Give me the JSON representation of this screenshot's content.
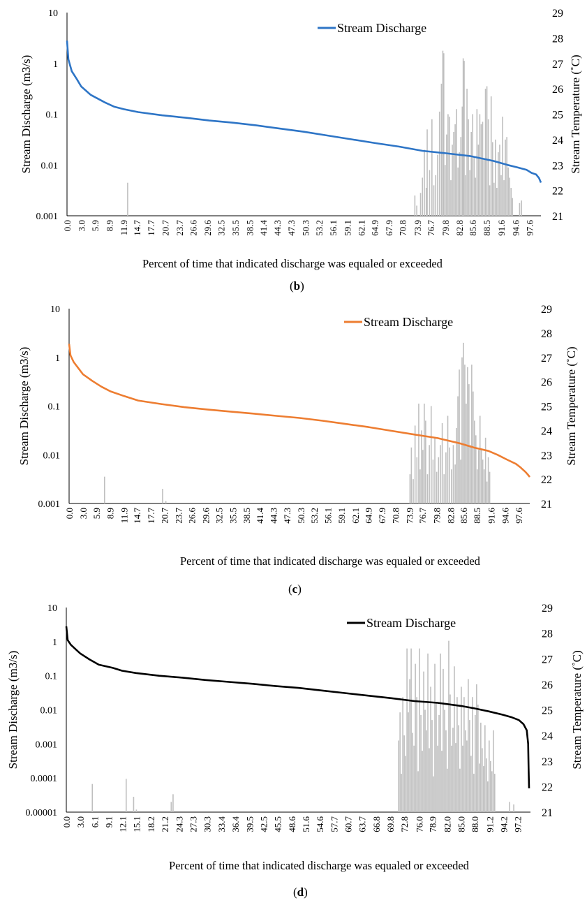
{
  "charts": [
    {
      "panel_label": "b",
      "xlabel": "Percent of time that indicated discharge was equaled or exceeded",
      "ylabel_left": "Stream Discharge (m3/s)",
      "ylabel_right": "Stream Temperature (˚C)",
      "legend": "Stream Discharge",
      "line_color": "#2E75C6",
      "left_ticks": [
        "10",
        "1",
        "0.1",
        "0.01",
        "0.001"
      ],
      "right_ticks": [
        "29",
        "28",
        "27",
        "26",
        "25",
        "24",
        "23",
        "22",
        "21"
      ],
      "x_ticks": [
        "0.0",
        "3.0",
        "5.9",
        "8.9",
        "11.9",
        "14.7",
        "17.7",
        "20.7",
        "23.7",
        "26.6",
        "29.6",
        "32.5",
        "35.5",
        "38.5",
        "41.4",
        "44.3",
        "47.3",
        "50.3",
        "53.2",
        "56.1",
        "59.1",
        "62.1",
        "64.9",
        "67.9",
        "70.8",
        "73.9",
        "76.7",
        "79.8",
        "82.8",
        "85.6",
        "88.5",
        "91.6",
        "94.6",
        "97.6"
      ]
    },
    {
      "panel_label": "c",
      "xlabel": "Percent of time that indicated discharge was equaled or exceeded",
      "ylabel_left": "Stream Discharge (m3/s)",
      "ylabel_right": "Stream Temperature (˚C)",
      "legend": "Stream Discharge",
      "line_color": "#ED7D31",
      "left_ticks": [
        "10",
        "1",
        "0.1",
        "0.01",
        "0.001"
      ],
      "right_ticks": [
        "29",
        "28",
        "27",
        "26",
        "25",
        "24",
        "23",
        "22",
        "21"
      ],
      "x_ticks": [
        "0.0",
        "3.0",
        "5.9",
        "8.9",
        "11.9",
        "14.7",
        "17.7",
        "20.7",
        "23.7",
        "26.6",
        "29.6",
        "32.5",
        "35.5",
        "38.5",
        "41.4",
        "44.3",
        "47.3",
        "50.3",
        "53.2",
        "56.1",
        "59.1",
        "62.1",
        "64.9",
        "67.9",
        "70.8",
        "73.9",
        "76.7",
        "79.8",
        "82.8",
        "85.6",
        "88.5",
        "91.6",
        "94.6",
        "97.6"
      ]
    },
    {
      "panel_label": "d",
      "xlabel": "Percent of time that indicated discharge was equaled or exceeded",
      "ylabel_left": "Stream Discharge (m3/s)",
      "ylabel_right": "Stream Temperature (˚C)",
      "legend": "Stream Discharge",
      "line_color": "#000000",
      "left_ticks": [
        "10",
        "1",
        "0.1",
        "0.01",
        "0.001",
        "0.0001",
        "0.00001"
      ],
      "right_ticks": [
        "29",
        "28",
        "27",
        "26",
        "25",
        "24",
        "23",
        "22",
        "21"
      ],
      "x_ticks": [
        "0.0",
        "3.0",
        "6.1",
        "9.1",
        "12.1",
        "15.1",
        "18.2",
        "21.2",
        "24.3",
        "27.3",
        "30.3",
        "33.4",
        "36.4",
        "39.5",
        "42.5",
        "45.5",
        "48.6",
        "51.6",
        "54.6",
        "57.7",
        "60.7",
        "63.7",
        "66.8",
        "69.8",
        "72.8",
        "76.0",
        "78.9",
        "82.0",
        "85.0",
        "88.0",
        "91.2",
        "94.2",
        "97.2"
      ]
    }
  ],
  "chart_data": [
    {
      "type": "line",
      "title": "",
      "xlabel": "Percent of time that indicated discharge was equaled or exceeded",
      "ylabel": "Stream Discharge (m3/s)",
      "y2label": "Stream Temperature (˚C)",
      "yscale": "log",
      "ylim": [
        0.001,
        10
      ],
      "y2lim": [
        21,
        29
      ],
      "xlim": [
        0,
        100
      ],
      "series": [
        {
          "name": "Stream Discharge",
          "type": "line",
          "axis": "left",
          "x": [
            0,
            0.3,
            1,
            2,
            3,
            5,
            8,
            10,
            12,
            15,
            20,
            25,
            30,
            35,
            40,
            45,
            50,
            55,
            60,
            65,
            70,
            75,
            80,
            85,
            90,
            93,
            95,
            97,
            98,
            99,
            99.6,
            100
          ],
          "y": [
            2.8,
            1.2,
            0.7,
            0.5,
            0.35,
            0.24,
            0.17,
            0.14,
            0.125,
            0.11,
            0.095,
            0.085,
            0.075,
            0.068,
            0.06,
            0.052,
            0.045,
            0.038,
            0.032,
            0.027,
            0.023,
            0.019,
            0.017,
            0.015,
            0.012,
            0.01,
            0.009,
            0.008,
            0.007,
            0.0065,
            0.0055,
            0.0045
          ]
        },
        {
          "type": "bar",
          "axis": "right",
          "x": [
            12.8,
            73.4,
            73.8,
            74.6,
            75.0,
            75.4,
            75.8,
            76.0,
            76.5,
            77.0,
            77.4,
            77.8,
            78.2,
            78.6,
            79.0,
            79.3,
            79.5,
            79.8,
            80.1,
            80.4,
            80.7,
            81.0,
            81.3,
            81.6,
            81.9,
            82.2,
            82.5,
            82.8,
            83.1,
            83.4,
            83.6,
            83.8,
            84.1,
            84.4,
            84.7,
            85.0,
            85.3,
            85.6,
            85.9,
            86.2,
            86.5,
            86.8,
            87.1,
            87.4,
            87.7,
            88.0,
            88.3,
            88.6,
            88.9,
            89.2,
            89.5,
            89.8,
            90.1,
            90.4,
            90.7,
            91.0,
            91.3,
            91.6,
            91.9,
            92.2,
            92.5,
            92.8,
            93.1,
            93.4,
            93.7,
            94.0,
            95.5,
            95.9
          ],
          "y": [
            22.3,
            21.8,
            21.4,
            21.9,
            22.5,
            23.6,
            22.1,
            24.4,
            22.8,
            24.8,
            22.2,
            22.6,
            23.4,
            25.1,
            26.2,
            27.5,
            27.4,
            23.0,
            24.2,
            25.0,
            24.9,
            22.4,
            23.8,
            24.3,
            24.6,
            25.2,
            22.9,
            23.5,
            24.1,
            25.3,
            27.2,
            27.1,
            22.6,
            26.0,
            24.8,
            22.8,
            24.3,
            25.0,
            23.3,
            22.5,
            25.2,
            23.8,
            25.0,
            24.6,
            24.7,
            23.2,
            26.0,
            26.1,
            24.8,
            22.2,
            25.7,
            23.9,
            22.3,
            24.0,
            22.1,
            23.5,
            23.8,
            22.6,
            24.9,
            22.4,
            24.0,
            24.1,
            22.9,
            22.5,
            22.1,
            21.7,
            21.5,
            21.6
          ]
        }
      ]
    },
    {
      "type": "line",
      "title": "",
      "xlabel": "Percent of time that indicated discharge was equaled or exceeded",
      "ylabel": "Stream Discharge (m3/s)",
      "y2label": "Stream Temperature (˚C)",
      "yscale": "log",
      "ylim": [
        0.001,
        10
      ],
      "y2lim": [
        21,
        29
      ],
      "xlim": [
        0,
        100
      ],
      "series": [
        {
          "name": "Stream Discharge",
          "type": "line",
          "axis": "left",
          "x": [
            0,
            0.3,
            1,
            2,
            3,
            5,
            7,
            9,
            12,
            15,
            20,
            25,
            30,
            35,
            40,
            45,
            50,
            55,
            60,
            65,
            70,
            75,
            80,
            85,
            88,
            91,
            93,
            95,
            97,
            98,
            99,
            99.5,
            100
          ],
          "y": [
            1.9,
            1.1,
            0.8,
            0.6,
            0.45,
            0.33,
            0.25,
            0.2,
            0.16,
            0.13,
            0.11,
            0.095,
            0.085,
            0.077,
            0.07,
            0.063,
            0.057,
            0.05,
            0.043,
            0.037,
            0.031,
            0.026,
            0.022,
            0.017,
            0.014,
            0.012,
            0.01,
            0.008,
            0.0065,
            0.0055,
            0.0045,
            0.004,
            0.0035
          ]
        },
        {
          "type": "bar",
          "axis": "right",
          "x": [
            7.7,
            20.3,
            21.0,
            74.0,
            74.3,
            74.7,
            75.1,
            75.5,
            75.9,
            76.2,
            76.5,
            76.8,
            77.1,
            77.4,
            77.8,
            78.2,
            78.6,
            79.0,
            79.4,
            79.8,
            80.2,
            80.6,
            81.0,
            81.4,
            81.8,
            82.2,
            82.6,
            83.0,
            83.4,
            83.8,
            84.1,
            84.4,
            84.7,
            85.0,
            85.3,
            85.6,
            85.9,
            86.2,
            86.5,
            86.8,
            87.1,
            87.4,
            87.7,
            88.0,
            88.3,
            88.6,
            88.9,
            89.2,
            89.5,
            89.8,
            90.1,
            90.4,
            90.7,
            91.0,
            91.3
          ],
          "y": [
            22.1,
            21.6,
            21.1,
            22.2,
            23.3,
            22.0,
            24.2,
            22.9,
            25.1,
            22.4,
            24.0,
            23.2,
            25.1,
            24.4,
            22.2,
            23.4,
            25.0,
            22.8,
            23.7,
            22.3,
            22.9,
            23.4,
            24.3,
            22.2,
            23.1,
            24.6,
            23.3,
            22.4,
            23.4,
            22.6,
            24.1,
            25.4,
            26.5,
            22.8,
            27.0,
            27.6,
            26.7,
            25.1,
            26.6,
            25.9,
            23.4,
            26.7,
            25.6,
            24.4,
            23.8,
            22.4,
            23.2,
            24.6,
            23.2,
            22.8,
            22.4,
            23.7,
            21.9,
            22.9,
            22.3
          ]
        }
      ]
    },
    {
      "type": "line",
      "title": "",
      "xlabel": "Percent of time that indicated discharge was equaled or exceeded",
      "ylabel": "Stream Discharge (m3/s)",
      "y2label": "Stream Temperature (˚C)",
      "yscale": "log",
      "ylim": [
        1e-05,
        10
      ],
      "y2lim": [
        21,
        29
      ],
      "xlim": [
        0,
        100
      ],
      "series": [
        {
          "name": "Stream Discharge",
          "type": "line",
          "axis": "left",
          "x": [
            0,
            0.3,
            1,
            2,
            3,
            5,
            7,
            10,
            12,
            15,
            20,
            25,
            30,
            35,
            40,
            45,
            50,
            55,
            60,
            65,
            70,
            75,
            80,
            85,
            88,
            91,
            94,
            96,
            97.5,
            98.5,
            99.2,
            99.5,
            99.6,
            99.7
          ],
          "y": [
            2.8,
            1.1,
            0.8,
            0.6,
            0.45,
            0.3,
            0.21,
            0.17,
            0.14,
            0.12,
            0.1,
            0.088,
            0.075,
            0.066,
            0.058,
            0.05,
            0.044,
            0.037,
            0.031,
            0.026,
            0.022,
            0.018,
            0.016,
            0.013,
            0.011,
            0.009,
            0.0072,
            0.006,
            0.005,
            0.0038,
            0.0025,
            0.001,
            0.0002,
            5e-05
          ]
        },
        {
          "type": "bar",
          "axis": "right",
          "x": [
            5.6,
            12.9,
            14.5,
            15.1,
            22.6,
            23.0,
            71.6,
            71.9,
            72.2,
            72.5,
            72.8,
            73.1,
            73.4,
            73.7,
            74.0,
            74.3,
            74.6,
            74.9,
            75.2,
            75.5,
            75.8,
            76.1,
            76.4,
            76.7,
            77.0,
            77.3,
            77.6,
            77.9,
            78.2,
            78.5,
            78.8,
            79.1,
            79.4,
            79.7,
            80.0,
            80.3,
            80.6,
            80.9,
            81.2,
            81.5,
            81.8,
            82.1,
            82.4,
            82.7,
            83.0,
            83.3,
            83.6,
            83.9,
            84.2,
            84.5,
            84.8,
            85.1,
            85.4,
            85.7,
            86.0,
            86.3,
            86.6,
            86.9,
            87.2,
            87.5,
            87.8,
            88.1,
            88.4,
            88.7,
            89.0,
            89.3,
            89.6,
            89.9,
            90.2,
            90.5,
            90.8,
            91.1,
            91.4,
            91.7,
            92.0,
            92.3,
            95.5,
            96.4
          ],
          "y": [
            22.1,
            22.3,
            21.6,
            21.1,
            21.4,
            21.7,
            23.8,
            24.9,
            22.5,
            25.5,
            24.0,
            23.2,
            27.4,
            24.9,
            26.2,
            27.4,
            24.1,
            23.6,
            26.8,
            25.5,
            22.6,
            27.4,
            24.8,
            23.4,
            26.5,
            25.0,
            24.2,
            27.2,
            23.5,
            25.9,
            24.6,
            22.4,
            26.8,
            25.3,
            23.6,
            24.8,
            27.2,
            23.4,
            26.6,
            25.0,
            24.2,
            22.7,
            27.7,
            25.6,
            23.6,
            24.3,
            26.7,
            23.7,
            25.5,
            24.4,
            22.7,
            25.9,
            23.6,
            25.5,
            24.2,
            23.8,
            26.2,
            24.6,
            23.2,
            25.5,
            22.5,
            24.8,
            26.0,
            25.2,
            22.9,
            24.5,
            23.5,
            22.8,
            24.4,
            23.1,
            22.2,
            23.8,
            23.0,
            22.6,
            24.2,
            22.5,
            21.4,
            21.3
          ]
        }
      ]
    }
  ]
}
